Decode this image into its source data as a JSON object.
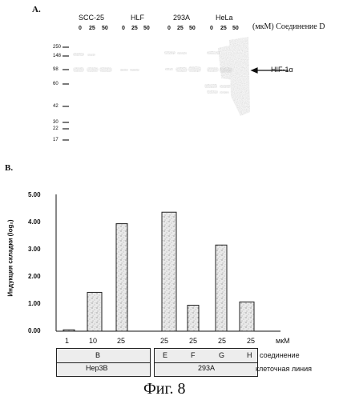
{
  "panel_a": {
    "letter": "A.",
    "lanes": [
      {
        "name": "SCC-25",
        "concs": [
          "0",
          "25",
          "50"
        ]
      },
      {
        "name": "HLF",
        "concs": [
          "0",
          "25",
          "50"
        ]
      },
      {
        "name": "293A",
        "concs": [
          "0",
          "25",
          "50"
        ]
      },
      {
        "name": "HeLa",
        "concs": [
          "0",
          "25",
          "50"
        ]
      }
    ],
    "unit_label": "(мкМ) Соединение D",
    "markers": [
      "250",
      "148",
      "98",
      "60",
      "42",
      "30",
      "22",
      "17"
    ],
    "arrow_label": "HIF-1α"
  },
  "panel_b": {
    "letter": "B.",
    "unit": "мкМ",
    "compound_row_label": "соединение",
    "cellline_row_label": "клеточная линия",
    "conc_labels": [
      "1",
      "10",
      "25",
      "25",
      "25",
      "25",
      "25"
    ],
    "compound_labels": [
      "",
      "B",
      "",
      "E",
      "F",
      "G",
      "H"
    ],
    "cell_lines": [
      "Hep3B",
      "293A"
    ]
  },
  "chart_data": {
    "type": "bar",
    "ylabel": "Индукция складки (log₂)",
    "ylim": [
      0,
      5
    ],
    "yticks": [
      "0.00",
      "1.00",
      "2.00",
      "3.00",
      "4.00",
      "5.00"
    ],
    "values": [
      0.05,
      1.42,
      3.93,
      4.35,
      0.95,
      3.15,
      1.07
    ]
  },
  "caption": "Фиг. 8"
}
